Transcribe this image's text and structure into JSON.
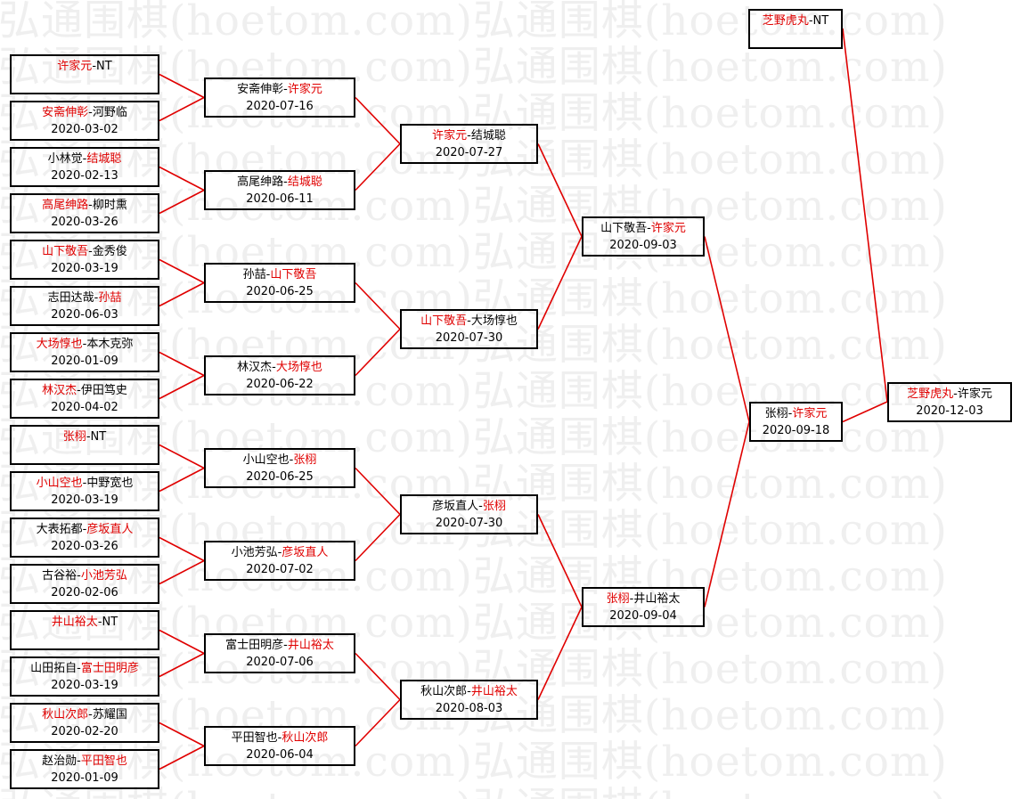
{
  "watermark": "弘通围棋(hoetom.com)",
  "colors": {
    "winner": "#e00000",
    "text": "#000000",
    "line": "#e00000",
    "border": "#000000"
  },
  "rounds": [
    [
      {
        "p1": "许家元",
        "p2": "NT",
        "winner": 1,
        "date": ""
      },
      {
        "p1": "安斋伸彰",
        "p2": "河野临",
        "winner": 1,
        "date": "2020-03-02"
      },
      {
        "p1": "小林觉",
        "p2": "结城聪",
        "winner": 2,
        "date": "2020-02-13"
      },
      {
        "p1": "高尾绅路",
        "p2": "柳时熏",
        "winner": 1,
        "date": "2020-03-26"
      },
      {
        "p1": "山下敬吾",
        "p2": "金秀俊",
        "winner": 1,
        "date": "2020-03-19"
      },
      {
        "p1": "志田达哉",
        "p2": "孙喆",
        "winner": 2,
        "date": "2020-06-03"
      },
      {
        "p1": "大场惇也",
        "p2": "本木克弥",
        "winner": 1,
        "date": "2020-01-09"
      },
      {
        "p1": "林汉杰",
        "p2": "伊田笃史",
        "winner": 1,
        "date": "2020-04-02"
      },
      {
        "p1": "张栩",
        "p2": "NT",
        "winner": 1,
        "date": ""
      },
      {
        "p1": "小山空也",
        "p2": "中野宽也",
        "winner": 1,
        "date": "2020-03-19"
      },
      {
        "p1": "大表拓都",
        "p2": "彦坂直人",
        "winner": 2,
        "date": "2020-03-26"
      },
      {
        "p1": "古谷裕",
        "p2": "小池芳弘",
        "winner": 2,
        "date": "2020-02-06"
      },
      {
        "p1": "井山裕太",
        "p2": "NT",
        "winner": 1,
        "date": ""
      },
      {
        "p1": "山田拓自",
        "p2": "富士田明彦",
        "winner": 2,
        "date": "2020-03-19"
      },
      {
        "p1": "秋山次郎",
        "p2": "苏耀国",
        "winner": 1,
        "date": "2020-02-20"
      },
      {
        "p1": "赵治勋",
        "p2": "平田智也",
        "winner": 2,
        "date": "2020-01-09"
      }
    ],
    [
      {
        "p1": "安斋伸彰",
        "p2": "许家元",
        "winner": 2,
        "date": "2020-07-16"
      },
      {
        "p1": "高尾绅路",
        "p2": "结城聪",
        "winner": 2,
        "date": "2020-06-11"
      },
      {
        "p1": "孙喆",
        "p2": "山下敬吾",
        "winner": 2,
        "date": "2020-06-25"
      },
      {
        "p1": "林汉杰",
        "p2": "大场惇也",
        "winner": 2,
        "date": "2020-06-22"
      },
      {
        "p1": "小山空也",
        "p2": "张栩",
        "winner": 2,
        "date": "2020-06-25"
      },
      {
        "p1": "小池芳弘",
        "p2": "彦坂直人",
        "winner": 2,
        "date": "2020-07-02"
      },
      {
        "p1": "富士田明彦",
        "p2": "井山裕太",
        "winner": 2,
        "date": "2020-07-06"
      },
      {
        "p1": "平田智也",
        "p2": "秋山次郎",
        "winner": 2,
        "date": "2020-06-04"
      }
    ],
    [
      {
        "p1": "许家元",
        "p2": "结城聪",
        "winner": 1,
        "date": "2020-07-27"
      },
      {
        "p1": "山下敬吾",
        "p2": "大场惇也",
        "winner": 1,
        "date": "2020-07-30"
      },
      {
        "p1": "彦坂直人",
        "p2": "张栩",
        "winner": 2,
        "date": "2020-07-30"
      },
      {
        "p1": "秋山次郎",
        "p2": "井山裕太",
        "winner": 2,
        "date": "2020-08-03"
      }
    ],
    [
      {
        "p1": "山下敬吾",
        "p2": "许家元",
        "winner": 2,
        "date": "2020-09-03"
      },
      {
        "p1": "张栩",
        "p2": "井山裕太",
        "winner": 1,
        "date": "2020-09-04"
      }
    ],
    [
      {
        "p1": "张栩",
        "p2": "许家元",
        "winner": 2,
        "date": "2020-09-18"
      }
    ]
  ],
  "seed": {
    "p1": "芝野虎丸",
    "p2": "NT",
    "winner": 1,
    "date": ""
  },
  "final": {
    "p1": "芝野虎丸",
    "p2": "许家元",
    "winner": 1,
    "date": "2020-12-03"
  }
}
